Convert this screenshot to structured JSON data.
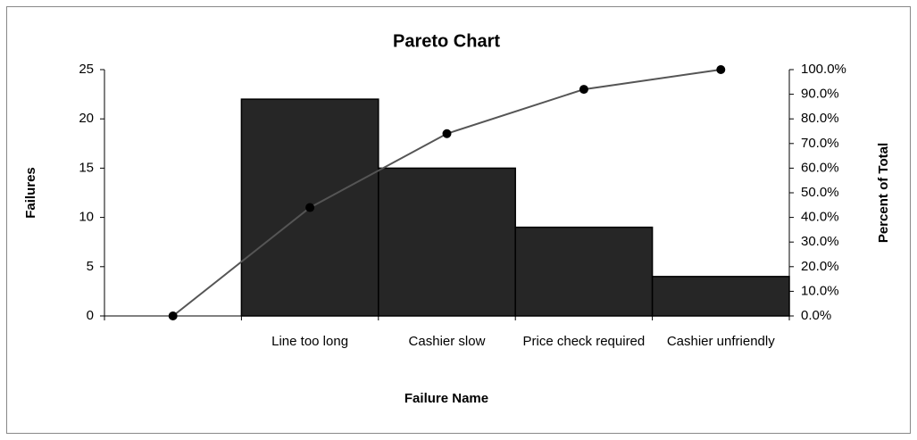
{
  "chart_data": {
    "type": "pareto",
    "title": "Pareto Chart",
    "x_label": "Failure Name",
    "y_label": "Failures",
    "y2_label": "Percent of Total",
    "categories": [
      null,
      "Line too long",
      "Cashier slow",
      "Price check required",
      "Cashier unfriendly"
    ],
    "series": [
      {
        "type": "bar",
        "color": "#262626",
        "values": [
          null,
          22,
          15,
          9,
          4
        ]
      },
      {
        "type": "line",
        "color": "#555555",
        "axis": "y2",
        "values": [
          0,
          44,
          74,
          92,
          100
        ]
      }
    ],
    "ylim": [
      0,
      25
    ],
    "yticks": [
      0,
      5,
      10,
      15,
      20,
      25
    ],
    "y2lim": [
      0,
      100
    ],
    "y2ticks": [
      {
        "value": 0,
        "label": "0.0%"
      },
      {
        "value": 10,
        "label": "10.0%"
      },
      {
        "value": 20,
        "label": "20.0%"
      },
      {
        "value": 30,
        "label": "30.0%"
      },
      {
        "value": 40,
        "label": "40.0%"
      },
      {
        "value": 50,
        "label": "50.0%"
      },
      {
        "value": 60,
        "label": "60.0%"
      },
      {
        "value": 70,
        "label": "70.0%"
      },
      {
        "value": 80,
        "label": "80.0%"
      },
      {
        "value": 90,
        "label": "90.0%"
      },
      {
        "value": 100,
        "label": "100.0%"
      }
    ],
    "grid": false
  }
}
